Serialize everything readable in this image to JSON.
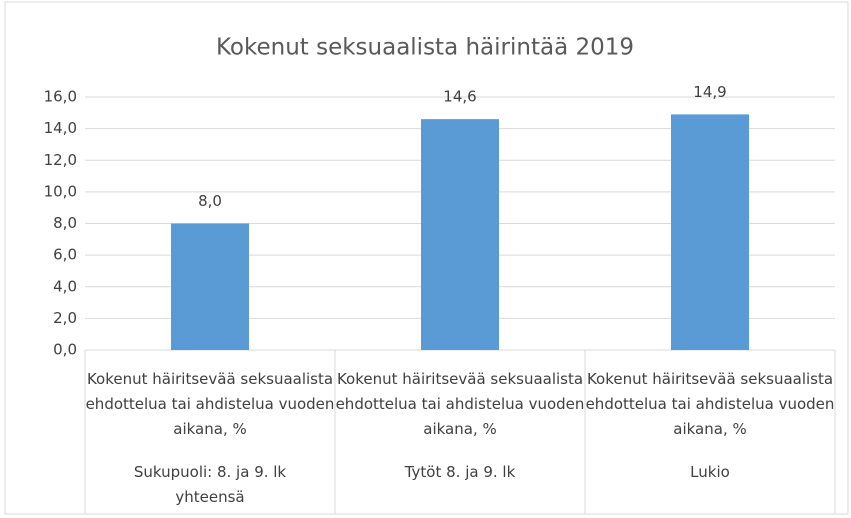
{
  "chart_data": {
    "type": "bar",
    "title": "Kokenut seksuaalista häirintää 2019",
    "categories": [
      "Kokenut häiritsevää seksuaalista ehdottelua tai ahdistelua vuoden aikana, %",
      "Kokenut häiritsevää seksuaalista ehdottelua tai ahdistelua vuoden aikana, %",
      "Kokenut häiritsevää seksuaalista ehdottelua tai ahdistelua vuoden aikana, %"
    ],
    "groups": [
      "Sukupuoli: 8. ja 9. lk yhteensä",
      "Tytöt 8. ja 9. lk",
      "Lukio"
    ],
    "values": [
      8.0,
      14.6,
      14.9
    ],
    "value_labels": [
      "8,0",
      "14,6",
      "14,9"
    ],
    "color": "#5b9bd5",
    "ylim": [
      0,
      16
    ],
    "yticks": [
      {
        "value": 0,
        "label": "0,0"
      },
      {
        "value": 2,
        "label": "2,0"
      },
      {
        "value": 4,
        "label": "4,0"
      },
      {
        "value": 6,
        "label": "6,0"
      },
      {
        "value": 8,
        "label": "8,0"
      },
      {
        "value": 10,
        "label": "10,0"
      },
      {
        "value": 12,
        "label": "12,0"
      },
      {
        "value": 14,
        "label": "14,0"
      },
      {
        "value": 16,
        "label": "16,0"
      }
    ],
    "grid": true
  }
}
